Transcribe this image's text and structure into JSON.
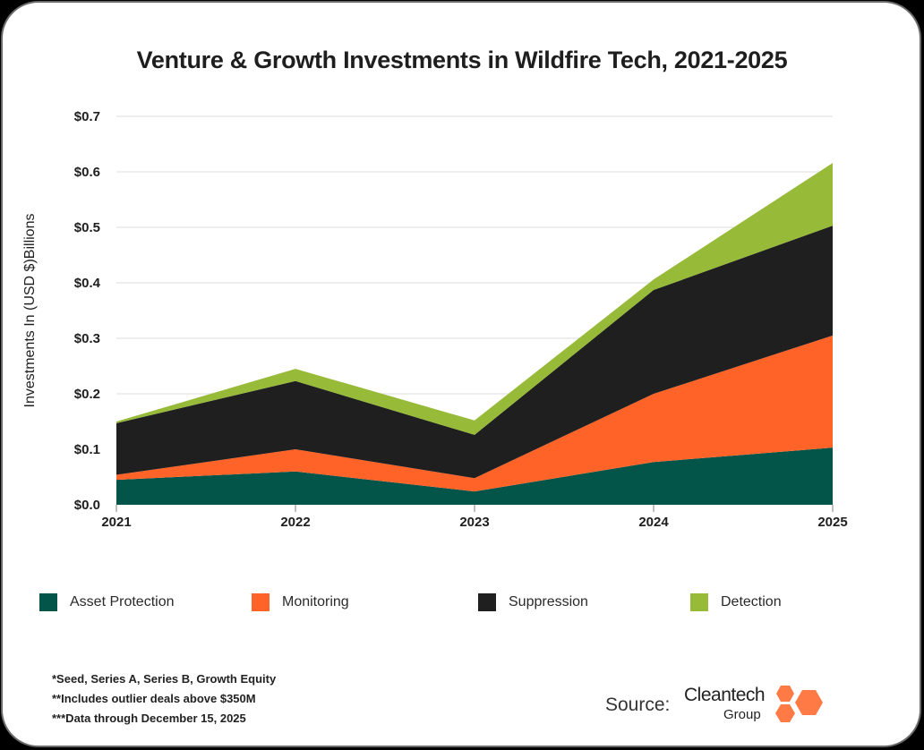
{
  "title": "Venture & Growth Investments in Wildfire Tech, 2021-2025",
  "chart_data": {
    "type": "area",
    "stacked": true,
    "title": "Venture & Growth Investments in Wildfire Tech, 2021-2025",
    "xlabel": "",
    "ylabel": "Investments In (USD $)Billions",
    "x": [
      "2021",
      "2022",
      "2023",
      "2024",
      "2025"
    ],
    "yticks": [
      "$0.0",
      "$0.1",
      "$0.2",
      "$0.3",
      "$0.4",
      "$0.5",
      "$0.6",
      "$0.7"
    ],
    "ytick_values": [
      0,
      0.1,
      0.2,
      0.3,
      0.4,
      0.5,
      0.6,
      0.7
    ],
    "ylim": [
      0,
      0.7
    ],
    "grid": true,
    "legend_position": "bottom",
    "series": [
      {
        "name": "Asset Protection",
        "color": "#03554A",
        "values": [
          0.045,
          0.06,
          0.024,
          0.077,
          0.103
        ]
      },
      {
        "name": "Monitoring",
        "color": "#FF6328",
        "values": [
          0.009,
          0.04,
          0.024,
          0.123,
          0.202
        ]
      },
      {
        "name": "Suppression",
        "color": "#1E1F1E",
        "values": [
          0.093,
          0.123,
          0.078,
          0.187,
          0.198
        ]
      },
      {
        "name": "Detection",
        "color": "#97BA38",
        "values": [
          0.003,
          0.022,
          0.026,
          0.019,
          0.113
        ]
      }
    ]
  },
  "legend": [
    {
      "label": "Asset Protection",
      "color": "#03554A"
    },
    {
      "label": "Monitoring",
      "color": "#FF6328"
    },
    {
      "label": "Suppression",
      "color": "#1E1F1E"
    },
    {
      "label": "Detection",
      "color": "#97BA38"
    }
  ],
  "notes": [
    "*Seed, Series A, Series B, Growth Equity",
    "**Includes outlier deals above $350M",
    "***Data through December 15, 2025"
  ],
  "source_label": "Source:",
  "logo": {
    "line1": "Cleantech",
    "line2": "Group",
    "color": "#FF7A45"
  }
}
